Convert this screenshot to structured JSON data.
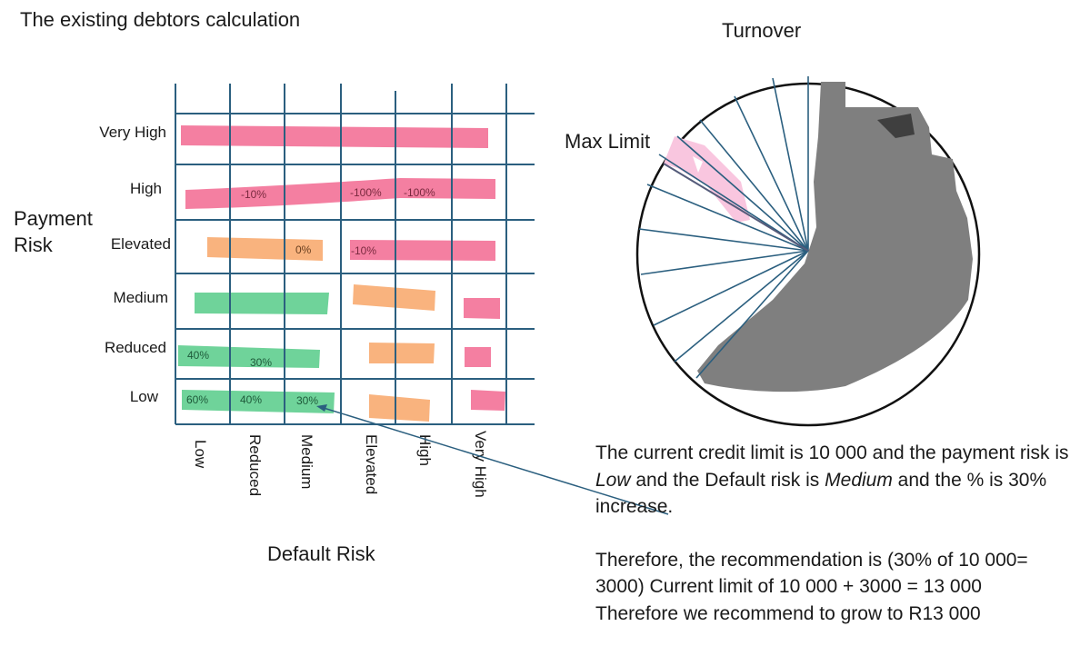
{
  "title": "The existing debtors calculation",
  "turnover_label": "Turnover",
  "max_limit_label": "Max Limit",
  "y_axis_label": "Payment Risk",
  "x_axis_label": "Default Risk",
  "payment_risk_levels": [
    "Very High",
    "High",
    "Elevated",
    "Medium",
    "Reduced",
    "Low"
  ],
  "default_risk_levels": [
    "Low",
    "Reduced",
    "Medium",
    "Elevated",
    "High",
    "Very High"
  ],
  "cell_values": {
    "high": [
      "-10%",
      "-100%",
      "-100%"
    ],
    "elevated": [
      "0%",
      "-10%"
    ],
    "reduced": [
      "40%",
      "30%"
    ],
    "low": [
      "60%",
      "40%",
      "30%"
    ]
  },
  "explanation": {
    "para1_a": "The current credit limit is 10 000 and the payment risk is ",
    "para1_low": "Low",
    "para1_b": " and the Default risk is ",
    "para1_medium": "Medium",
    "para1_c": " and the % is 30% increase.",
    "para2_line1": "Therefore, the recommendation is (30% of 10 000= 3000) Current limit of 10 000 + 3000 = 13 000",
    "para2_line2": "Therefore we recommend to grow to R13 000"
  },
  "colors": {
    "pink": "#f47fa1",
    "orange": "#f9b37e",
    "green": "#6fd39a",
    "grid": "#2b5f7f",
    "gray_fill": "#7f7f7f",
    "light_pink": "#f9c6df"
  }
}
